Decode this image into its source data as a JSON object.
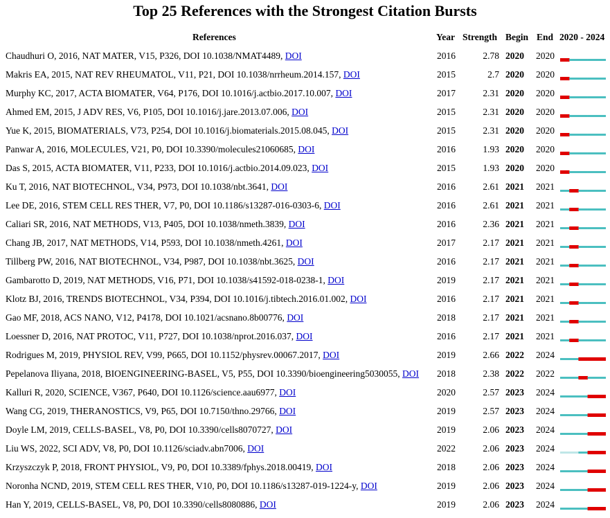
{
  "title": "Top 25 References with the Strongest Citation Bursts",
  "headers": {
    "references": "References",
    "year": "Year",
    "strength": "Strength",
    "begin": "Begin",
    "end": "End",
    "range": "2020 - 2024"
  },
  "timeline": {
    "start": 2020,
    "end": 2024
  },
  "colors": {
    "burst": "#e00000",
    "active": "#4bbfc0",
    "inactive": "#bfe6e7",
    "link": "#0000cc"
  },
  "rows": [
    {
      "ref": "Chaudhuri O, 2016, NAT MATER, V15, P326, DOI 10.1038/NMAT4489,",
      "link": "DOI",
      "year": "2016",
      "strength": "2.78",
      "begin": "2020",
      "end": "2020"
    },
    {
      "ref": "Makris EA, 2015, NAT REV RHEUMATOL, V11, P21, DOI 10.1038/nrrheum.2014.157,",
      "link": "DOI",
      "year": "2015",
      "strength": "2.7",
      "begin": "2020",
      "end": "2020"
    },
    {
      "ref": "Murphy KC, 2017, ACTA BIOMATER, V64, P176, DOI 10.1016/j.actbio.2017.10.007,",
      "link": "DOI",
      "year": "2017",
      "strength": "2.31",
      "begin": "2020",
      "end": "2020"
    },
    {
      "ref": "Ahmed EM, 2015, J ADV RES, V6, P105, DOI 10.1016/j.jare.2013.07.006,",
      "link": "DOI",
      "year": "2015",
      "strength": "2.31",
      "begin": "2020",
      "end": "2020"
    },
    {
      "ref": "Yue K, 2015, BIOMATERIALS, V73, P254, DOI 10.1016/j.biomaterials.2015.08.045,",
      "link": "DOI",
      "year": "2015",
      "strength": "2.31",
      "begin": "2020",
      "end": "2020"
    },
    {
      "ref": "Panwar A, 2016, MOLECULES, V21, P0, DOI 10.3390/molecules21060685,",
      "link": "DOI",
      "year": "2016",
      "strength": "1.93",
      "begin": "2020",
      "end": "2020"
    },
    {
      "ref": "Das S, 2015, ACTA BIOMATER, V11, P233, DOI 10.1016/j.actbio.2014.09.023,",
      "link": "DOI",
      "year": "2015",
      "strength": "1.93",
      "begin": "2020",
      "end": "2020"
    },
    {
      "ref": "Ku T, 2016, NAT BIOTECHNOL, V34, P973, DOI 10.1038/nbt.3641,",
      "link": "DOI",
      "year": "2016",
      "strength": "2.61",
      "begin": "2021",
      "end": "2021"
    },
    {
      "ref": "Lee DE, 2016, STEM CELL RES THER, V7, P0, DOI 10.1186/s13287-016-0303-6,",
      "link": "DOI",
      "year": "2016",
      "strength": "2.61",
      "begin": "2021",
      "end": "2021"
    },
    {
      "ref": "Caliari SR, 2016, NAT METHODS, V13, P405, DOI 10.1038/nmeth.3839,",
      "link": "DOI",
      "year": "2016",
      "strength": "2.36",
      "begin": "2021",
      "end": "2021"
    },
    {
      "ref": "Chang JB, 2017, NAT METHODS, V14, P593, DOI 10.1038/nmeth.4261,",
      "link": "DOI",
      "year": "2017",
      "strength": "2.17",
      "begin": "2021",
      "end": "2021"
    },
    {
      "ref": "Tillberg PW, 2016, NAT BIOTECHNOL, V34, P987, DOI 10.1038/nbt.3625,",
      "link": "DOI",
      "year": "2016",
      "strength": "2.17",
      "begin": "2021",
      "end": "2021"
    },
    {
      "ref": "Gambarotto D, 2019, NAT METHODS, V16, P71, DOI 10.1038/s41592-018-0238-1,",
      "link": "DOI",
      "year": "2019",
      "strength": "2.17",
      "begin": "2021",
      "end": "2021"
    },
    {
      "ref": "Klotz BJ, 2016, TRENDS BIOTECHNOL, V34, P394, DOI 10.1016/j.tibtech.2016.01.002,",
      "link": "DOI",
      "year": "2016",
      "strength": "2.17",
      "begin": "2021",
      "end": "2021"
    },
    {
      "ref": "Gao MF, 2018, ACS NANO, V12, P4178, DOI 10.1021/acsnano.8b00776,",
      "link": "DOI",
      "year": "2018",
      "strength": "2.17",
      "begin": "2021",
      "end": "2021"
    },
    {
      "ref": "Loessner D, 2016, NAT PROTOC, V11, P727, DOI 10.1038/nprot.2016.037,",
      "link": "DOI",
      "year": "2016",
      "strength": "2.17",
      "begin": "2021",
      "end": "2021"
    },
    {
      "ref": "Rodrigues M, 2019, PHYSIOL REV, V99, P665, DOI 10.1152/physrev.00067.2017,",
      "link": "DOI",
      "year": "2019",
      "strength": "2.66",
      "begin": "2022",
      "end": "2024"
    },
    {
      "ref": "Pepelanova Iliyana, 2018, BIOENGINEERING-BASEL, V5, P55, DOI 10.3390/bioengineering5030055,",
      "link": "DOI",
      "year": "2018",
      "strength": "2.38",
      "begin": "2022",
      "end": "2022"
    },
    {
      "ref": "Kalluri R, 2020, SCIENCE, V367, P640, DOI 10.1126/science.aau6977,",
      "link": "DOI",
      "year": "2020",
      "strength": "2.57",
      "begin": "2023",
      "end": "2024"
    },
    {
      "ref": "Wang CG, 2019, THERANOSTICS, V9, P65, DOI 10.7150/thno.29766,",
      "link": "DOI",
      "year": "2019",
      "strength": "2.57",
      "begin": "2023",
      "end": "2024"
    },
    {
      "ref": "Doyle LM, 2019, CELLS-BASEL, V8, P0, DOI 10.3390/cells8070727,",
      "link": "DOI",
      "year": "2019",
      "strength": "2.06",
      "begin": "2023",
      "end": "2024"
    },
    {
      "ref": "Liu WS, 2022, SCI ADV, V8, P0, DOI 10.1126/sciadv.abn7006,",
      "link": "DOI",
      "year": "2022",
      "strength": "2.06",
      "begin": "2023",
      "end": "2024"
    },
    {
      "ref": "Krzyszczyk P, 2018, FRONT PHYSIOL, V9, P0, DOI 10.3389/fphys.2018.00419,",
      "link": "DOI",
      "year": "2018",
      "strength": "2.06",
      "begin": "2023",
      "end": "2024"
    },
    {
      "ref": "Noronha NCND, 2019, STEM CELL RES THER, V10, P0, DOI 10.1186/s13287-019-1224-y,",
      "link": "DOI",
      "year": "2019",
      "strength": "2.06",
      "begin": "2023",
      "end": "2024"
    },
    {
      "ref": "Han Y, 2019, CELLS-BASEL, V8, P0, DOI 10.3390/cells8080886,",
      "link": "DOI",
      "year": "2019",
      "strength": "2.06",
      "begin": "2023",
      "end": "2024"
    }
  ]
}
